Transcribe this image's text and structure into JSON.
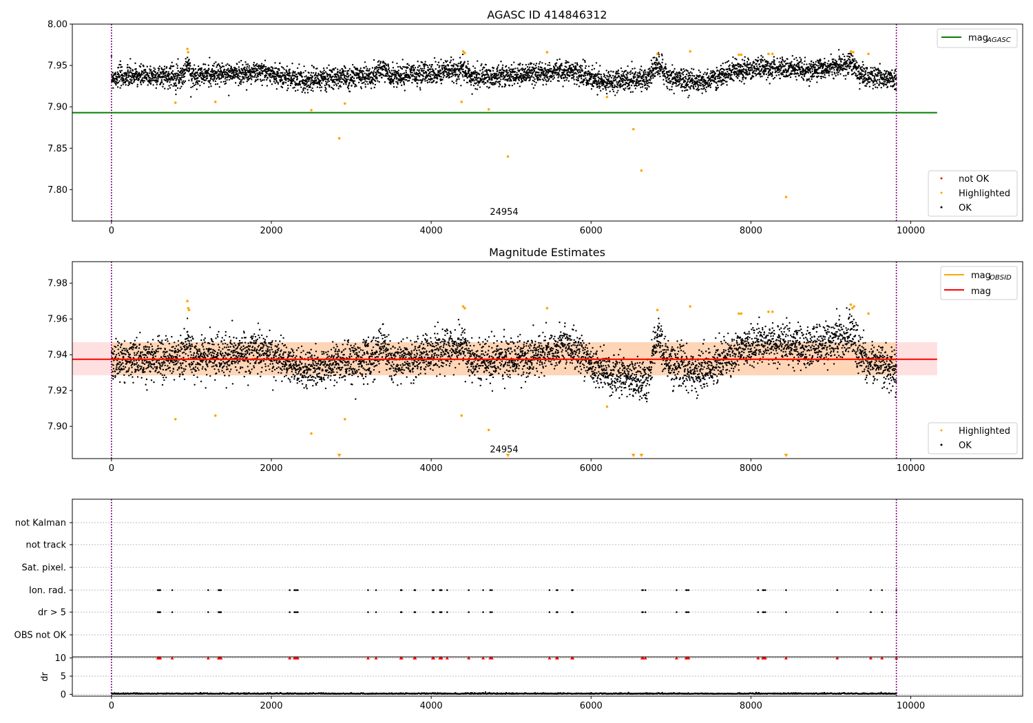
{
  "chart_data": [
    {
      "type": "scatter",
      "title": "AGASC ID 414846312",
      "xlim": [
        -490,
        11400
      ],
      "ylim": [
        7.762,
        8.0
      ],
      "x_ticks": [
        "0",
        "2000",
        "4000",
        "6000",
        "8000",
        "10000"
      ],
      "x_tick_values": [
        0,
        2000,
        4000,
        6000,
        8000,
        10000
      ],
      "y_ticks": [
        "7.80",
        "7.85",
        "7.90",
        "7.95",
        "8.00"
      ],
      "y_tick_values": [
        7.8,
        7.85,
        7.9,
        7.95,
        8.0
      ],
      "obsid_label": "24954",
      "obsid_label_x": 4870,
      "obs_boundaries": [
        0,
        9820
      ],
      "mag_agasc": {
        "name": "mag_AGASC",
        "value": 7.893,
        "x_range": [
          -490,
          10330
        ],
        "color": "#008000"
      },
      "legend_top": [
        {
          "label": "mag",
          "sub": "AGASC",
          "color": "#008000"
        }
      ],
      "legend_bottom": [
        {
          "label": "not OK",
          "color": "#ff0000"
        },
        {
          "label": "Highlighted",
          "color": "#ffa500"
        },
        {
          "label": "OK",
          "color": "#000000"
        }
      ],
      "series": [
        {
          "name": "OK",
          "color": "#000000",
          "generator": {
            "x_range": [
              0,
              9820
            ],
            "n": 5200,
            "baseline_segments": [
              [
                0,
                7.936
              ],
              [
                900,
                7.938
              ],
              [
                950,
                7.952
              ],
              [
                1000,
                7.938
              ],
              [
                1900,
                7.942
              ],
              [
                2400,
                7.932
              ],
              [
                3300,
                7.938
              ],
              [
                3400,
                7.946
              ],
              [
                3500,
                7.936
              ],
              [
                4400,
                7.945
              ],
              [
                4500,
                7.936
              ],
              [
                5400,
                7.94
              ],
              [
                5700,
                7.945
              ],
              [
                6200,
                7.93
              ],
              [
                6700,
                7.935
              ],
              [
                6850,
                7.952
              ],
              [
                6950,
                7.935
              ],
              [
                7400,
                7.93
              ],
              [
                7900,
                7.945
              ],
              [
                8200,
                7.946
              ],
              [
                8800,
                7.944
              ],
              [
                9250,
                7.952
              ],
              [
                9400,
                7.937
              ],
              [
                9820,
                7.932
              ]
            ],
            "spread": 0.013
          }
        },
        {
          "name": "Highlighted",
          "color": "#ffa500",
          "points": [
            [
              800,
              7.905
            ],
            [
              950,
              7.97
            ],
            [
              960,
              7.966
            ],
            [
              1300,
              7.906
            ],
            [
              2500,
              7.896
            ],
            [
              2850,
              7.862
            ],
            [
              2920,
              7.904
            ],
            [
              4380,
              7.906
            ],
            [
              4400,
              7.967
            ],
            [
              4420,
              7.965
            ],
            [
              4720,
              7.897
            ],
            [
              4960,
              7.84
            ],
            [
              5450,
              7.966
            ],
            [
              6200,
              7.912
            ],
            [
              6530,
              7.873
            ],
            [
              6630,
              7.823
            ],
            [
              6830,
              7.964
            ],
            [
              7240,
              7.967
            ],
            [
              7850,
              7.963
            ],
            [
              7880,
              7.963
            ],
            [
              8220,
              7.964
            ],
            [
              8270,
              7.964
            ],
            [
              8440,
              7.791
            ],
            [
              9250,
              7.967
            ],
            [
              9280,
              7.966
            ],
            [
              9470,
              7.964
            ]
          ]
        },
        {
          "name": "not OK",
          "color": "#ff0000",
          "points": []
        }
      ]
    },
    {
      "type": "scatter",
      "title": "Magnitude Estimates",
      "xlim": [
        -490,
        11400
      ],
      "ylim": [
        7.882,
        7.992
      ],
      "x_ticks": [
        "0",
        "2000",
        "4000",
        "6000",
        "8000",
        "10000"
      ],
      "x_tick_values": [
        0,
        2000,
        4000,
        6000,
        8000,
        10000
      ],
      "y_ticks": [
        "7.90",
        "7.92",
        "7.94",
        "7.96",
        "7.98"
      ],
      "y_tick_values": [
        7.9,
        7.92,
        7.94,
        7.96,
        7.98
      ],
      "obsid_label": "24954",
      "obsid_label_x": 4870,
      "obs_boundaries": [
        0,
        9820
      ],
      "mag": {
        "name": "mag",
        "value": 7.9375,
        "band": [
          7.9285,
          7.947
        ],
        "x_range": [
          -490,
          10330
        ],
        "color": "#ff0000"
      },
      "mag_obsid": {
        "name": "mag_OBSID",
        "value": 7.9375,
        "x_range": [
          0,
          9820
        ],
        "band": [
          7.9285,
          7.947
        ],
        "color": "#ffa500"
      },
      "legend_top": [
        {
          "label": "mag",
          "sub": "OBSID",
          "color": "#ffa500"
        },
        {
          "label": "mag",
          "sub": "",
          "color": "#ff0000"
        }
      ],
      "legend_bottom": [
        {
          "label": "Highlighted",
          "color": "#ffa500"
        },
        {
          "label": "OK",
          "color": "#000000"
        }
      ],
      "series": [
        {
          "name": "OK",
          "color": "#000000",
          "generator": {
            "x_range": [
              0,
              9820
            ],
            "n": 5200,
            "baseline_segments": [
              [
                0,
                7.936
              ],
              [
                900,
                7.938
              ],
              [
                950,
                7.952
              ],
              [
                1000,
                7.938
              ],
              [
                1900,
                7.942
              ],
              [
                2400,
                7.932
              ],
              [
                3300,
                7.938
              ],
              [
                3400,
                7.946
              ],
              [
                3500,
                7.936
              ],
              [
                4400,
                7.945
              ],
              [
                4500,
                7.936
              ],
              [
                5400,
                7.94
              ],
              [
                5700,
                7.945
              ],
              [
                6200,
                7.93
              ],
              [
                6700,
                7.925
              ],
              [
                6850,
                7.952
              ],
              [
                6950,
                7.935
              ],
              [
                7400,
                7.93
              ],
              [
                7900,
                7.945
              ],
              [
                8200,
                7.946
              ],
              [
                8800,
                7.944
              ],
              [
                9250,
                7.952
              ],
              [
                9400,
                7.937
              ],
              [
                9820,
                7.932
              ]
            ],
            "spread": 0.011
          }
        },
        {
          "name": "Highlighted",
          "color": "#ffa500",
          "points": [
            [
              800,
              7.904
            ],
            [
              950,
              7.97
            ],
            [
              960,
              7.966
            ],
            [
              970,
              7.965
            ],
            [
              1300,
              7.906
            ],
            [
              2500,
              7.896
            ],
            [
              2920,
              7.904
            ],
            [
              4380,
              7.906
            ],
            [
              4400,
              7.967
            ],
            [
              4420,
              7.966
            ],
            [
              4720,
              7.898
            ],
            [
              5450,
              7.966
            ],
            [
              6200,
              7.911
            ],
            [
              6830,
              7.965
            ],
            [
              7240,
              7.967
            ],
            [
              7850,
              7.963
            ],
            [
              7880,
              7.963
            ],
            [
              8220,
              7.964
            ],
            [
              8270,
              7.964
            ],
            [
              9250,
              7.968
            ],
            [
              9270,
              7.966
            ],
            [
              9290,
              7.967
            ],
            [
              9470,
              7.963
            ]
          ]
        },
        {
          "name": "Highlighted (off-scale low)",
          "color": "#ffa500",
          "marker": "triangle-down",
          "points": [
            [
              2850,
              7.882
            ],
            [
              4960,
              7.882
            ],
            [
              6530,
              7.882
            ],
            [
              6630,
              7.882
            ],
            [
              8440,
              7.882
            ]
          ]
        }
      ]
    },
    {
      "type": "scatter",
      "title": "",
      "xlim": [
        -490,
        11400
      ],
      "x_ticks": [
        "0",
        "2000",
        "4000",
        "6000",
        "8000",
        "10000"
      ],
      "x_tick_values": [
        0,
        2000,
        4000,
        6000,
        8000,
        10000
      ],
      "obs_boundaries": [
        0,
        9820
      ],
      "flag_rows": [
        "not Kalman",
        "not track",
        "Sat. pixel.",
        "Ion. rad.",
        "dr > 5",
        "OBS not OK"
      ],
      "flag_points": {
        "Ion. rad.": [
          580,
          590,
          600,
          610,
          760,
          1210,
          1340,
          1350,
          1360,
          1370,
          2230,
          2290,
          2300,
          2320,
          2330,
          3210,
          3310,
          3620,
          3630,
          3790,
          3800,
          4020,
          4030,
          4110,
          4120,
          4130,
          4200,
          4470,
          4650,
          4740,
          4760,
          5480,
          5570,
          5580,
          5760,
          5770,
          6640,
          6650,
          6680,
          7070,
          7190,
          7200,
          7220,
          8090,
          8150,
          8160,
          8180,
          8440,
          9080,
          9500,
          9640,
          9820
        ],
        "dr > 5": [
          580,
          590,
          600,
          610,
          760,
          1210,
          1340,
          1350,
          1360,
          1370,
          2230,
          2290,
          2300,
          2320,
          2330,
          3210,
          3310,
          3620,
          3630,
          3790,
          3800,
          4020,
          4030,
          4110,
          4120,
          4130,
          4200,
          4470,
          4650,
          4740,
          4760,
          5480,
          5570,
          5580,
          5760,
          5770,
          6640,
          6650,
          6680,
          7070,
          7190,
          7200,
          7220,
          8090,
          8150,
          8160,
          8180,
          8440,
          9080,
          9500,
          9640,
          9820
        ]
      },
      "dr_panel": {
        "ylabel": "dr",
        "ylim": [
          -0.5,
          10.3
        ],
        "y_ticks": [
          "0",
          "5",
          "10"
        ],
        "y_tick_values": [
          0,
          5,
          10
        ],
        "clip_value": 10,
        "clipped_x": [
          580,
          590,
          600,
          610,
          760,
          1210,
          1340,
          1350,
          1360,
          1370,
          2230,
          2290,
          2300,
          2320,
          2330,
          3210,
          3310,
          3620,
          3630,
          3790,
          3800,
          4020,
          4030,
          4110,
          4120,
          4130,
          4200,
          4470,
          4650,
          4740,
          4760,
          5480,
          5570,
          5580,
          5760,
          5770,
          6640,
          6650,
          6680,
          7070,
          7190,
          7200,
          7220,
          8090,
          8150,
          8160,
          8180,
          8440,
          9080,
          9500,
          9640,
          9820
        ],
        "typical_range": [
          0,
          0.5
        ]
      }
    }
  ]
}
